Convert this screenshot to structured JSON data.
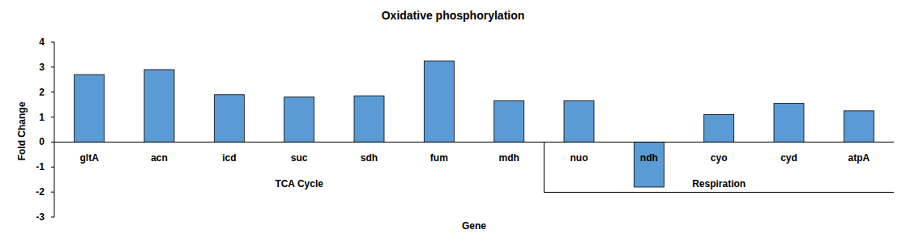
{
  "chart_data": {
    "type": "bar",
    "title": "Oxidative phosphorylation",
    "x_label": "Gene",
    "y_label": "Fold Change",
    "categories": [
      "gltA",
      "acn",
      "icd",
      "suc",
      "sdh",
      "fum",
      "mdh",
      "nuo",
      "ndh",
      "cyo",
      "cyd",
      "atpA"
    ],
    "category_groups": [
      "TCA Cycle",
      "TCA Cycle",
      "TCA Cycle",
      "TCA Cycle",
      "TCA Cycle",
      "TCA Cycle",
      "TCA Cycle",
      "Respiration",
      "Respiration",
      "Respiration",
      "Respiration",
      "Respiration"
    ],
    "values": [
      2.7,
      2.9,
      1.9,
      1.8,
      1.85,
      3.25,
      1.65,
      1.65,
      -1.8,
      1.1,
      1.55,
      1.25
    ],
    "color": "#5b9bd5",
    "ylim": [
      -3,
      4
    ],
    "yticks": [
      -3,
      -2,
      -1,
      0,
      1,
      2,
      3,
      4
    ],
    "grid": false
  }
}
